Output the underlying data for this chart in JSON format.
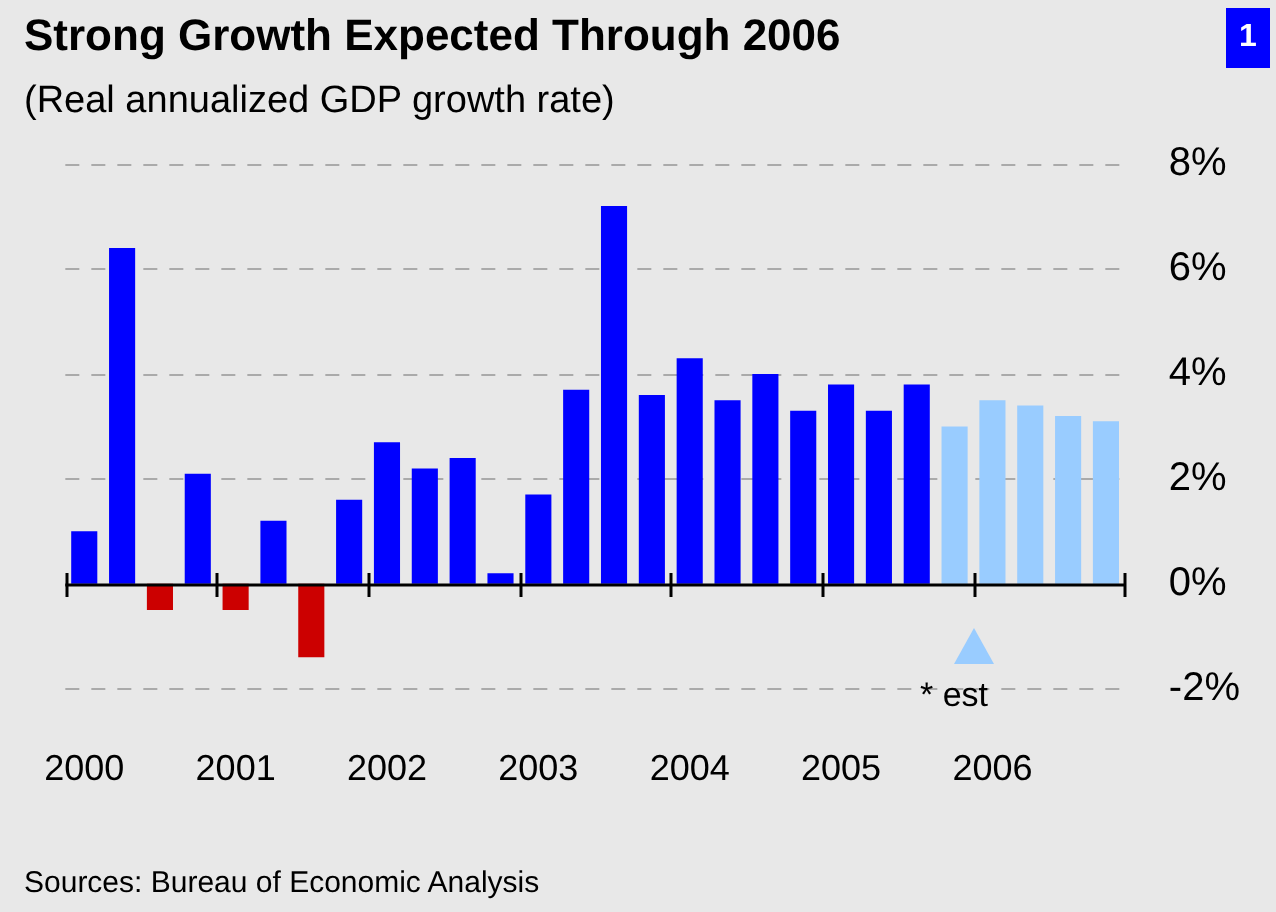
{
  "chart_data": {
    "type": "bar",
    "title": "Strong Growth Expected Through 2006",
    "subtitle": "(Real annualized GDP growth rate)",
    "categories": [
      "2000",
      null,
      null,
      null,
      "2001",
      null,
      null,
      null,
      "2002",
      null,
      null,
      null,
      "2003",
      null,
      null,
      null,
      "2004",
      null,
      null,
      null,
      "2005",
      null,
      null,
      null,
      "2006",
      null,
      null,
      null
    ],
    "values": [
      1.0,
      6.4,
      -0.5,
      2.1,
      -0.5,
      1.2,
      -1.4,
      1.6,
      2.7,
      2.2,
      2.4,
      0.2,
      1.7,
      3.7,
      7.2,
      3.6,
      4.3,
      3.5,
      4.0,
      3.3,
      3.8,
      3.3,
      3.8,
      3.0,
      3.5,
      3.4,
      3.2,
      3.1
    ],
    "colors": [
      "#0000ff",
      "#0000ff",
      "#cc0000",
      "#0000ff",
      "#cc0000",
      "#0000ff",
      "#cc0000",
      "#0000ff",
      "#0000ff",
      "#0000ff",
      "#0000ff",
      "#0000ff",
      "#0000ff",
      "#0000ff",
      "#0000ff",
      "#0000ff",
      "#0000ff",
      "#0000ff",
      "#0000ff",
      "#0000ff",
      "#0000ff",
      "#0000ff",
      "#0000ff",
      "#99ccff",
      "#99ccff",
      "#99ccff",
      "#99ccff",
      "#99ccff"
    ],
    "ylim": [
      -2,
      8
    ],
    "yticks": [
      {
        "value": -2,
        "label": "-2%"
      },
      {
        "value": 0,
        "label": "0%"
      },
      {
        "value": 2,
        "label": "2%"
      },
      {
        "value": 4,
        "label": "4%"
      },
      {
        "value": 6,
        "label": "6%"
      },
      {
        "value": 8,
        "label": "8%"
      }
    ],
    "grid": "y",
    "annotations": [
      "* est",
      "Sources: Bureau of Economic Analysis",
      "1"
    ]
  }
}
